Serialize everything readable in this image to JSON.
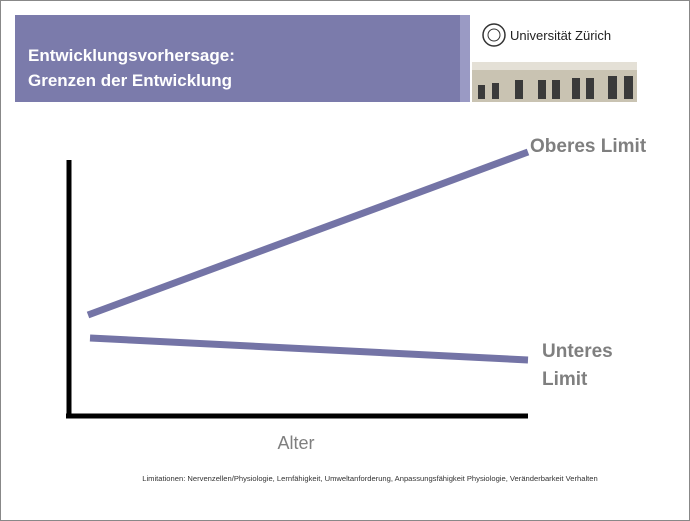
{
  "header": {
    "title_lines": [
      "Entwicklungsvorhersage:",
      "Grenzen der Entwicklung"
    ],
    "logo_text": "Universität Zürich"
  },
  "diagram": {
    "upper_label": "Oberes Limit",
    "lower_label_lines": [
      "Unteres",
      "Limit"
    ],
    "x_axis_label": "Alter"
  },
  "footnote": "Limitationen: Nervenzellen/Physiologie, Lernfähigkeit, Umweltanforderung, Anpassungsfähigkeit Physiologie, Veränderbarkeit Verhalten"
}
